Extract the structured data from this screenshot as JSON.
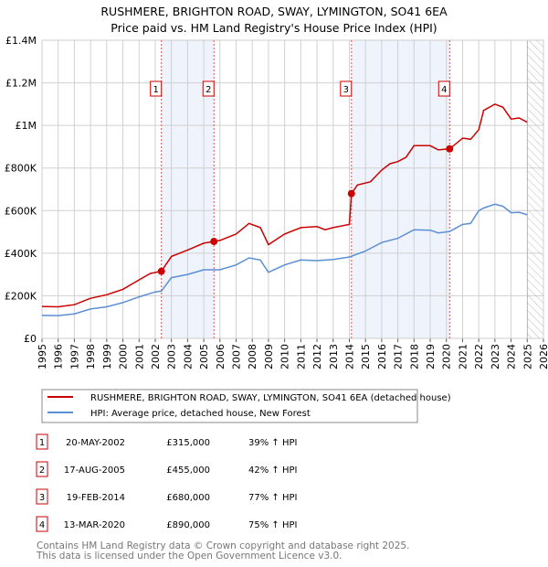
{
  "chart_data": {
    "type": "line",
    "title": "RUSHMERE, BRIGHTON ROAD, SWAY, LYMINGTON, SO41 6EA",
    "subtitle": "Price paid vs. HM Land Registry's House Price Index (HPI)",
    "xlim": [
      1995,
      2026
    ],
    "ylim": [
      0,
      1400000
    ],
    "grid": true,
    "x_ticks": [
      "1995",
      "1996",
      "1997",
      "1998",
      "1999",
      "2000",
      "2001",
      "2002",
      "2003",
      "2004",
      "2005",
      "2006",
      "2007",
      "2008",
      "2009",
      "2010",
      "2011",
      "2012",
      "2013",
      "2014",
      "2015",
      "2016",
      "2017",
      "2018",
      "2019",
      "2020",
      "2021",
      "2022",
      "2023",
      "2024",
      "2025",
      "2026"
    ],
    "y_ticks": [
      {
        "value": 0,
        "label": "£0"
      },
      {
        "value": 200000,
        "label": "£200K"
      },
      {
        "value": 400000,
        "label": "£400K"
      },
      {
        "value": 600000,
        "label": "£600K"
      },
      {
        "value": 800000,
        "label": "£800K"
      },
      {
        "value": 1000000,
        "label": "£1M"
      },
      {
        "value": 1200000,
        "label": "£1.2M"
      },
      {
        "value": 1400000,
        "label": "£1.4M"
      }
    ],
    "forecast_hatch_from": 2025,
    "shaded_ranges": [
      [
        2002.38,
        2005.63
      ],
      [
        2014.13,
        2020.2
      ]
    ],
    "series": [
      {
        "name": "RUSHMERE, BRIGHTON ROAD, SWAY, LYMINGTON, SO41 6EA (detached house)",
        "color": "#cc0000",
        "x": [
          1995,
          1996,
          1997,
          1998,
          1999,
          2000,
          2001,
          2001.7,
          2002.38,
          2003,
          2004,
          2005,
          2005.63,
          2006,
          2007,
          2007.8,
          2008.5,
          2009,
          2010,
          2011,
          2012,
          2012.5,
          2013,
          2014,
          2014.13,
          2014.5,
          2015.3,
          2016,
          2016.5,
          2017,
          2017.5,
          2018,
          2019,
          2019.5,
          2020.2,
          2021,
          2021.5,
          2022,
          2022.3,
          2023,
          2023.5,
          2024,
          2024.5,
          2025
        ],
        "y": [
          150000,
          148000,
          158000,
          188000,
          205000,
          230000,
          275000,
          305000,
          315000,
          385000,
          415000,
          447000,
          455000,
          460000,
          490000,
          540000,
          520000,
          440000,
          490000,
          520000,
          525000,
          510000,
          520000,
          535000,
          680000,
          720000,
          735000,
          790000,
          820000,
          830000,
          850000,
          905000,
          905000,
          885000,
          890000,
          940000,
          935000,
          980000,
          1070000,
          1100000,
          1085000,
          1030000,
          1035000,
          1015000
        ]
      },
      {
        "name": "HPI: Average price, detached house, New Forest",
        "color": "#5b8fd4",
        "x": [
          1995,
          1996,
          1997,
          1998,
          1999,
          2000,
          2001,
          2002,
          2002.38,
          2003,
          2004,
          2005,
          2006,
          2007,
          2007.8,
          2008.5,
          2009,
          2010,
          2011,
          2012,
          2013,
          2014,
          2015,
          2016,
          2017,
          2018,
          2019,
          2019.5,
          2020.2,
          2021,
          2021.5,
          2022,
          2022.3,
          2023,
          2023.5,
          2024,
          2024.5,
          2025
        ],
        "y": [
          108000,
          107000,
          115000,
          138000,
          148000,
          168000,
          195000,
          218000,
          222000,
          285000,
          300000,
          322000,
          322000,
          345000,
          378000,
          368000,
          310000,
          345000,
          368000,
          365000,
          370000,
          382000,
          410000,
          450000,
          470000,
          510000,
          508000,
          495000,
          502000,
          535000,
          540000,
          600000,
          612000,
          630000,
          620000,
          590000,
          592000,
          580000
        ]
      }
    ],
    "sales": [
      {
        "label": "1",
        "x": 2002.38,
        "price": 315000
      },
      {
        "label": "2",
        "x": 2005.63,
        "price": 455000
      },
      {
        "label": "3",
        "x": 2014.13,
        "price": 680000
      },
      {
        "label": "4",
        "x": 2020.2,
        "price": 890000
      }
    ]
  },
  "legend": {
    "property": "RUSHMERE, BRIGHTON ROAD, SWAY, LYMINGTON, SO41 6EA (detached house)",
    "hpi": "HPI: Average price, detached house, New Forest"
  },
  "transactions": [
    {
      "num": "1",
      "date": "20-MAY-2002",
      "price": "£315,000",
      "hpi": "39% ↑ HPI"
    },
    {
      "num": "2",
      "date": "17-AUG-2005",
      "price": "£455,000",
      "hpi": "42% ↑ HPI"
    },
    {
      "num": "3",
      "date": "19-FEB-2014",
      "price": "£680,000",
      "hpi": "77% ↑ HPI"
    },
    {
      "num": "4",
      "date": "13-MAR-2020",
      "price": "£890,000",
      "hpi": "75% ↑ HPI"
    }
  ],
  "footer": {
    "line1": "Contains HM Land Registry data © Crown copyright and database right 2025.",
    "line2": "This data is licensed under the Open Government Licence v3.0."
  }
}
